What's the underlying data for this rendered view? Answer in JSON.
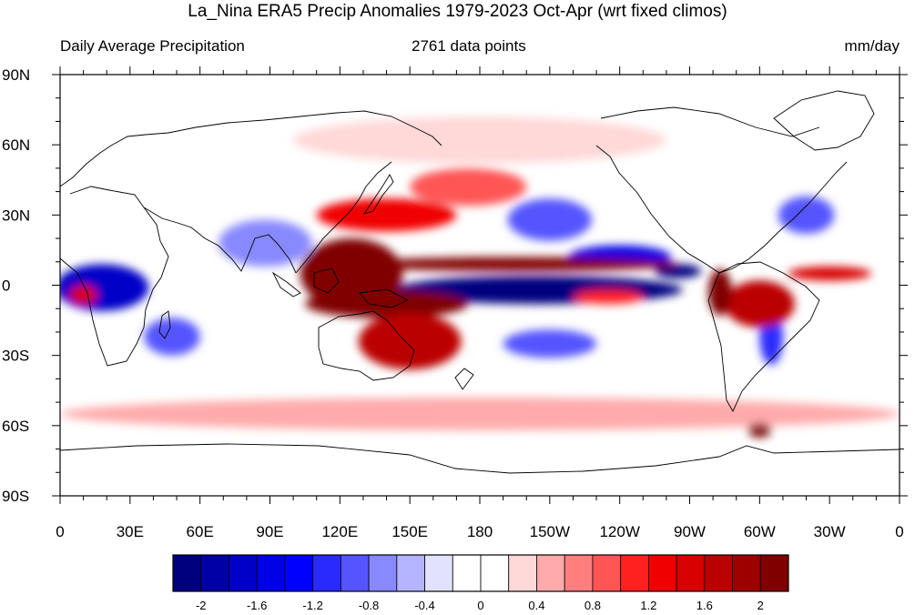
{
  "title": "La_Nina ERA5 Precip Anomalies 1979-2023 Oct-Apr (wrt fixed climos)",
  "subtitle_left": "Daily Average Precipitation",
  "subtitle_center": "2761 data points",
  "subtitle_right": "mm/day",
  "map": {
    "lon_range": [
      0,
      360
    ],
    "lat_range": [
      -90,
      90
    ],
    "x_tick_labels": [
      "0",
      "30E",
      "60E",
      "90E",
      "120E",
      "150E",
      "180",
      "150W",
      "120W",
      "90W",
      "60W",
      "30W",
      "0"
    ],
    "y_tick_labels": [
      "90N",
      "60N",
      "30N",
      "0",
      "30S",
      "60S",
      "90S"
    ]
  },
  "colorbar": {
    "colors": [
      "#00007f",
      "#0000a6",
      "#0000c8",
      "#0000e6",
      "#0000ff",
      "#2a2aff",
      "#5555ff",
      "#8888ff",
      "#b4b4ff",
      "#e2e2ff",
      "#ffffff",
      "#ffffff",
      "#ffd8d8",
      "#ffaaaa",
      "#ff7f7f",
      "#ff5555",
      "#ff2020",
      "#f00000",
      "#d80000",
      "#bb0000",
      "#9e0000",
      "#800000"
    ],
    "labels": [
      "-2",
      "-1.6",
      "-1.2",
      "-0.8",
      "-0.4",
      "0",
      "0.4",
      "0.8",
      "1.2",
      "1.6",
      "2"
    ]
  },
  "anomaly_regions": [
    {
      "lon": 205,
      "lat": -2,
      "rlon": 62,
      "rlat": 6,
      "value": -2.4
    },
    {
      "lon": 240,
      "lat": 12,
      "rlon": 22,
      "rlat": 5,
      "value": -1.6
    },
    {
      "lon": 265,
      "lat": 6,
      "rlon": 10,
      "rlat": 3,
      "value": -2.2
    },
    {
      "lon": 18,
      "lat": -1,
      "rlon": 20,
      "rlat": 10,
      "value": -1.8
    },
    {
      "lon": 48,
      "lat": -22,
      "rlon": 12,
      "rlat": 8,
      "value": -0.9
    },
    {
      "lon": 88,
      "lat": 18,
      "rlon": 20,
      "rlat": 10,
      "value": -0.7
    },
    {
      "lon": 210,
      "lat": 28,
      "rlon": 18,
      "rlat": 9,
      "value": -1.0
    },
    {
      "lon": 320,
      "lat": 30,
      "rlon": 12,
      "rlat": 8,
      "value": -0.9
    },
    {
      "lon": 210,
      "lat": -25,
      "rlon": 20,
      "rlat": 6,
      "value": -0.9
    },
    {
      "lon": 305,
      "lat": -22,
      "rlon": 5,
      "rlat": 12,
      "value": -1.2
    },
    {
      "lon": 125,
      "lat": 5,
      "rlon": 22,
      "rlat": 15,
      "value": 2.4
    },
    {
      "lon": 195,
      "lat": 9,
      "rlon": 70,
      "rlat": 3,
      "value": 2.0
    },
    {
      "lon": 140,
      "lat": -8,
      "rlon": 35,
      "rlat": 6,
      "value": 2.2
    },
    {
      "lon": 150,
      "lat": -24,
      "rlon": 22,
      "rlat": 12,
      "value": 1.6
    },
    {
      "lon": 140,
      "lat": 30,
      "rlon": 30,
      "rlat": 7,
      "value": 1.3
    },
    {
      "lon": 175,
      "lat": 42,
      "rlon": 25,
      "rlat": 8,
      "value": 0.9
    },
    {
      "lon": 300,
      "lat": -8,
      "rlon": 15,
      "rlat": 10,
      "value": 1.6
    },
    {
      "lon": 283,
      "lat": -3,
      "rlon": 5,
      "rlat": 10,
      "value": 2.2
    },
    {
      "lon": 330,
      "lat": 5,
      "rlon": 18,
      "rlat": 3,
      "value": 1.5
    },
    {
      "lon": 235,
      "lat": -5,
      "rlon": 15,
      "rlat": 3,
      "value": 1.0
    },
    {
      "lon": 10,
      "lat": -4,
      "rlon": 6,
      "rlat": 4,
      "value": 1.5
    },
    {
      "lon": 180,
      "lat": -55,
      "rlon": 180,
      "rlat": 7,
      "value": 0.4
    },
    {
      "lon": 180,
      "lat": 62,
      "rlon": 80,
      "rlat": 10,
      "value": 0.2
    },
    {
      "lon": 300,
      "lat": -62,
      "rlon": 5,
      "rlat": 3,
      "value": 2.0
    }
  ]
}
